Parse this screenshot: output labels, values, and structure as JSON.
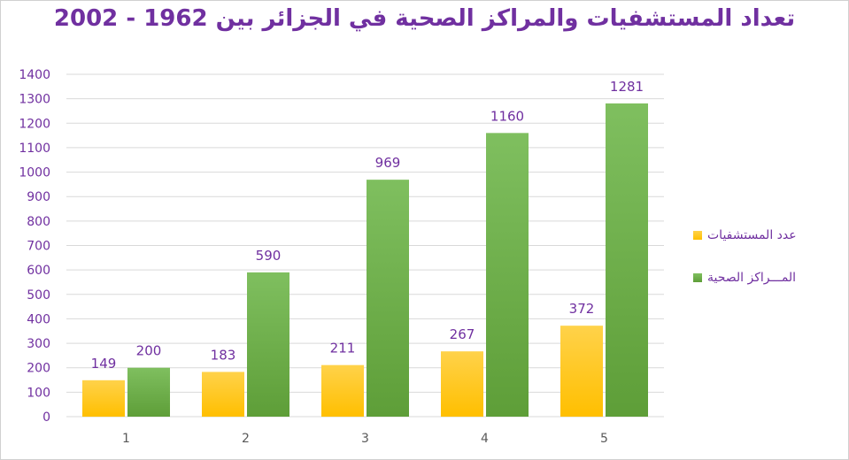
{
  "chart_data": {
    "type": "bar",
    "title": "تعداد المستشفيات والمراكز الصحية في الجزائر بين 1962 - 2002",
    "categories": [
      "1",
      "2",
      "3",
      "4",
      "5"
    ],
    "series": [
      {
        "name": "عدد المستشفيات",
        "values": [
          149,
          183,
          211,
          267,
          372
        ],
        "color": "#ffc000"
      },
      {
        "name": "المـــراكز الصحية",
        "values": [
          200,
          590,
          969,
          1160,
          1281
        ],
        "color": "#70ad47"
      }
    ],
    "ylim": [
      0,
      1400
    ],
    "yticks": [
      "0",
      "100",
      "200",
      "300",
      "400",
      "500",
      "600",
      "700",
      "800",
      "900",
      "1000",
      "1100",
      "1200",
      "1300",
      "1400"
    ],
    "grid": true,
    "legend_position": "right",
    "label_color": "#7030a0",
    "axis_text_color": "#595959"
  }
}
